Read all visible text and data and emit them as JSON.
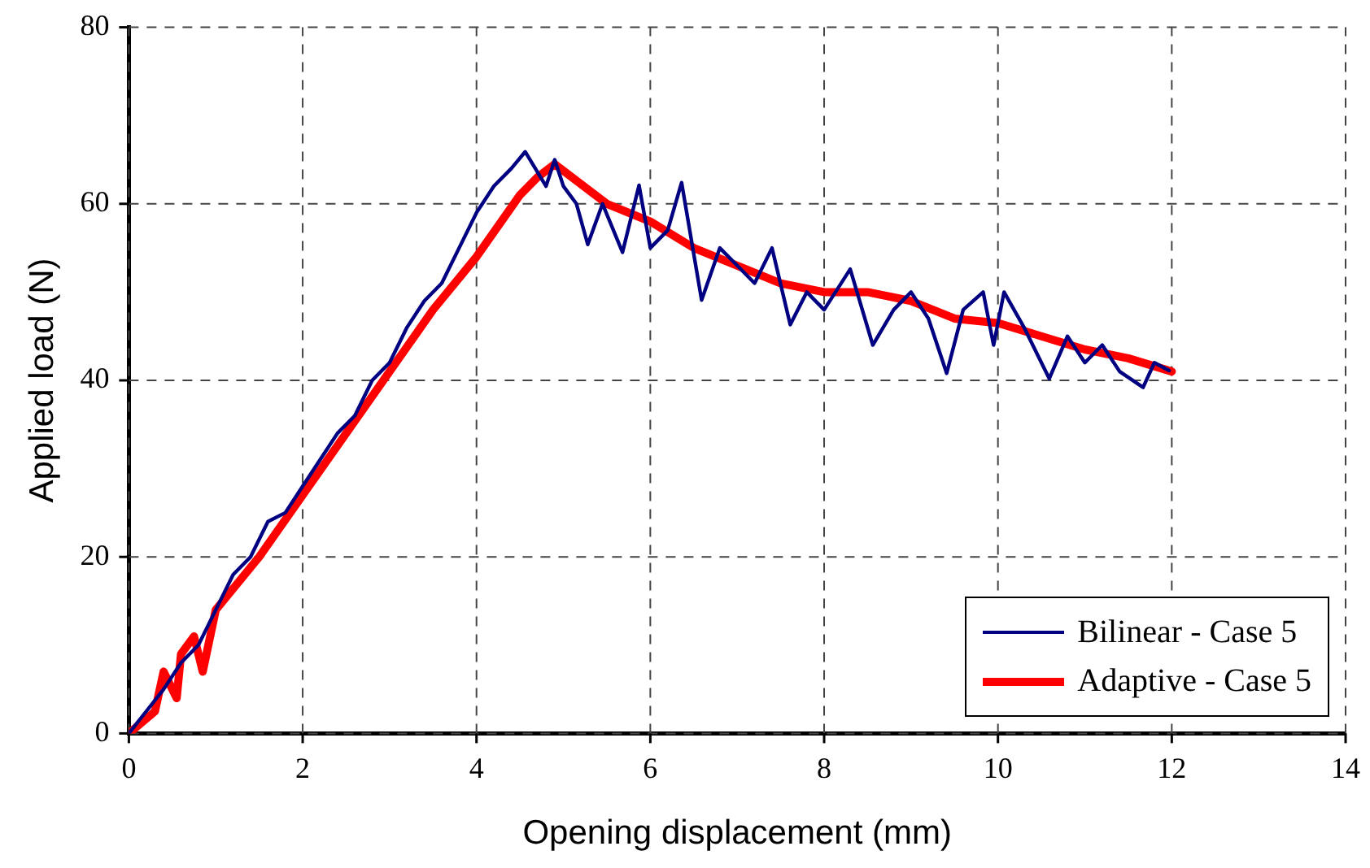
{
  "chart_data": {
    "type": "line",
    "xlabel": "Opening displacement (mm)",
    "ylabel": "Applied load (N)",
    "xlim": [
      0,
      14
    ],
    "xticks": [
      0,
      2,
      4,
      6,
      8,
      10,
      12,
      14
    ],
    "ylim": [
      0,
      80
    ],
    "yticks": [
      0,
      20,
      40,
      60,
      80
    ],
    "grid": true,
    "legend": "bottom right",
    "marker": "none",
    "line_style": "solid",
    "series": [
      {
        "name": "Bilinear - Case 5",
        "color": "#000080",
        "x": [
          0,
          0.2,
          0.4,
          0.6,
          0.8,
          1.0,
          1.2,
          1.4,
          1.6,
          1.8,
          2.0,
          2.2,
          2.4,
          2.6,
          2.8,
          3.0,
          3.2,
          3.4,
          3.6,
          3.8,
          4.0,
          4.2,
          4.4,
          4.56,
          4.8,
          4.9,
          5.0,
          5.15,
          5.28,
          5.45,
          5.68,
          5.87,
          6.0,
          6.2,
          6.36,
          6.59,
          6.8,
          7.0,
          7.2,
          7.4,
          7.61,
          7.8,
          8.0,
          8.3,
          8.56,
          8.8,
          9.0,
          9.2,
          9.41,
          9.6,
          9.83,
          9.95,
          10.07,
          10.3,
          10.59,
          10.8,
          11.0,
          11.2,
          11.4,
          11.67,
          11.8,
          11.97
        ],
        "values": [
          0,
          2.5,
          5,
          8,
          10,
          14,
          18,
          20,
          24,
          25,
          28,
          31,
          34,
          36,
          40,
          42,
          46,
          49,
          51,
          55,
          59,
          62,
          64,
          65.9,
          62,
          65,
          62,
          60,
          55.4,
          60,
          54.5,
          62.1,
          55,
          57,
          62.4,
          49.1,
          55,
          53,
          51,
          55,
          46.3,
          50,
          48,
          52.6,
          44,
          48,
          50,
          47,
          40.8,
          48,
          50,
          44,
          50,
          46,
          40.2,
          45,
          42,
          44,
          41,
          39.2,
          42,
          41.1
        ]
      },
      {
        "name": "Adaptive - Case 5",
        "color": "#ff0000",
        "x": [
          0,
          0.3,
          0.4,
          0.55,
          0.6,
          0.75,
          0.85,
          1.0,
          1.5,
          2.0,
          2.5,
          3.0,
          3.5,
          4.0,
          4.5,
          4.7,
          4.9,
          5.1,
          5.5,
          6.0,
          6.5,
          7.0,
          7.5,
          8.0,
          8.5,
          9.0,
          9.5,
          10.0,
          10.5,
          11.0,
          11.5,
          12.0
        ],
        "values": [
          0,
          2.5,
          7,
          4,
          9,
          11,
          7,
          14,
          20,
          27,
          34,
          41,
          48,
          54,
          61,
          63,
          64.5,
          63,
          60,
          58,
          55,
          53,
          51,
          50,
          50,
          49,
          47,
          46.5,
          45,
          43.5,
          42.5,
          41
        ]
      }
    ]
  }
}
